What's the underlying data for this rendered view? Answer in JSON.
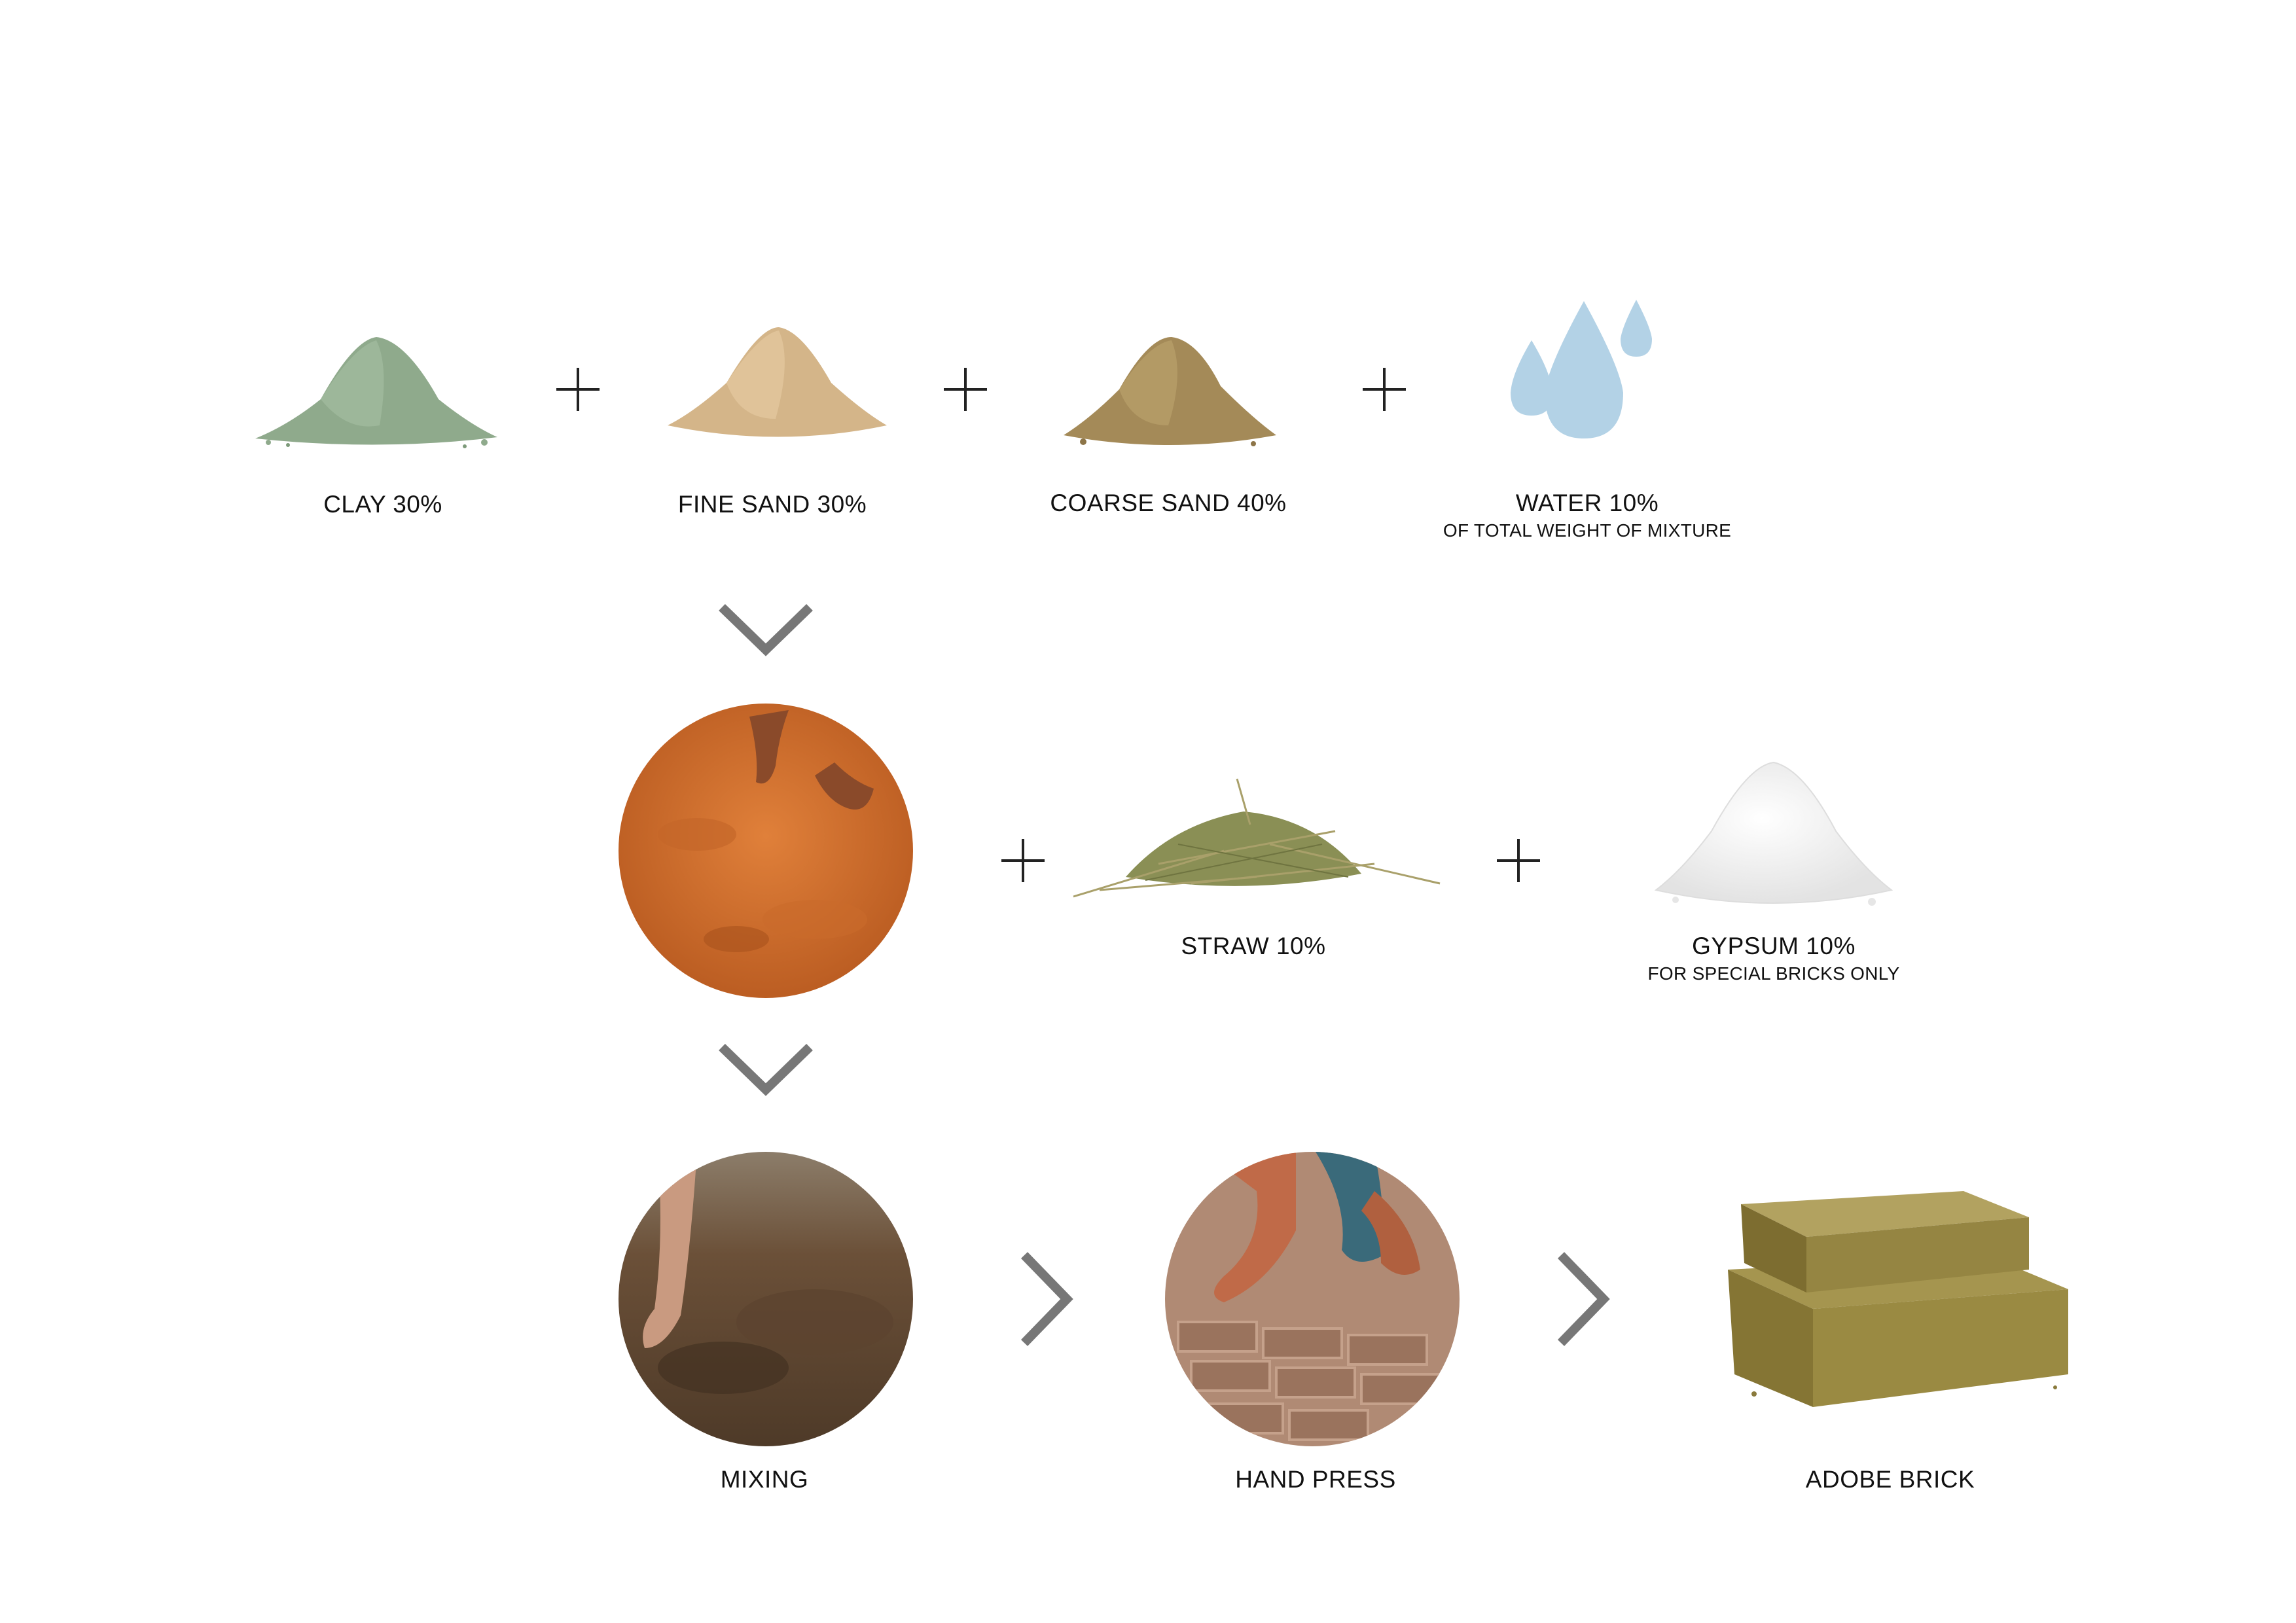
{
  "ingredients_row": [
    {
      "label": "CLAY 30%",
      "icon": "clay-pile-icon",
      "color": "#8faa8c"
    },
    {
      "label": "FINE SAND 30%",
      "icon": "fine-sand-pile-icon",
      "color": "#d4b589"
    },
    {
      "label": "COARSE SAND 40%",
      "icon": "coarse-sand-pile-icon",
      "color": "#a48a58"
    },
    {
      "label": "WATER 10%",
      "sublabel": "OF TOTAL WEIGHT OF MIXTURE",
      "icon": "water-drops-icon",
      "color": "#b3d2e6"
    }
  ],
  "additives_row": [
    {
      "label": "STRAW 10%",
      "icon": "straw-pile-icon",
      "color": "#8a8f55"
    },
    {
      "label": "GYPSUM 10%",
      "sublabel": "FOR SPECIAL BRICKS ONLY",
      "icon": "gypsum-pile-icon",
      "color": "#f2f2f2"
    }
  ],
  "process_row": [
    {
      "label": "MIXING",
      "icon": "mixing-photo",
      "color": "#6b5038"
    },
    {
      "label": "HAND PRESS",
      "icon": "hand-press-photo",
      "color": "#b08a74"
    },
    {
      "label": "ADOBE BRICK",
      "icon": "adobe-brick-icon",
      "color": "#8a7a3c"
    }
  ],
  "symbols": {
    "plus": "plus-icon",
    "arrow_down": "chevron-down-icon",
    "arrow_right": "chevron-right-icon",
    "arrow_color": "#777777",
    "plus_color": "#222222"
  }
}
